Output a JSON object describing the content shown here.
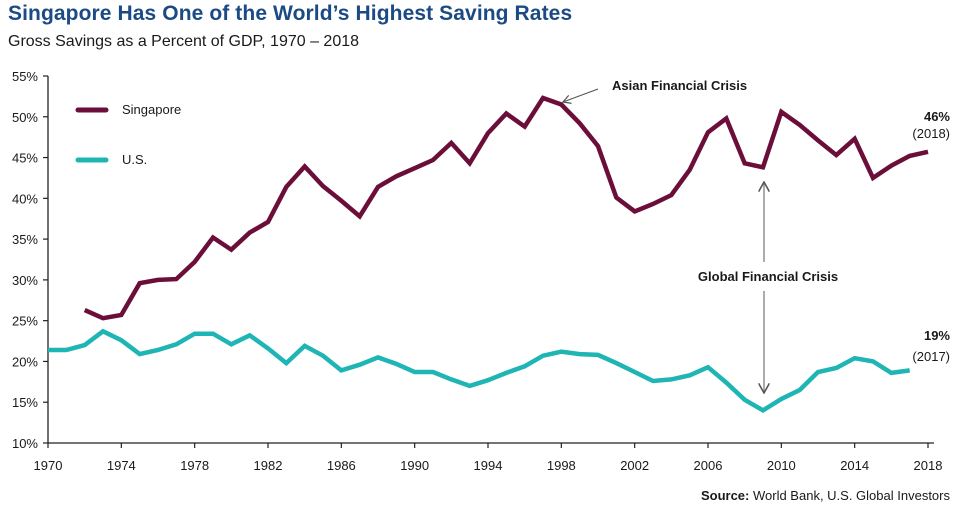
{
  "chart_data": {
    "type": "line",
    "title": "Singapore Has One of the World’s Highest Saving Rates",
    "subtitle": "Gross Savings as a Percent of GDP, 1970 – 2018",
    "xlabel": "",
    "ylabel": "",
    "xlim": [
      1970,
      2018
    ],
    "ylim": [
      10,
      55
    ],
    "x_ticks": [
      1970,
      1974,
      1978,
      1982,
      1986,
      1990,
      1994,
      1998,
      2002,
      2006,
      2010,
      2014,
      2018
    ],
    "x_tick_labels": [
      "1970",
      "1974",
      "1978",
      "1982",
      "1986",
      "1990",
      "1994",
      "1998",
      "2002",
      "2006",
      "2010",
      "2014",
      "2018"
    ],
    "y_ticks": [
      10,
      15,
      20,
      25,
      30,
      35,
      40,
      45,
      50,
      55
    ],
    "y_tick_labels": [
      "10%",
      "15%",
      "20%",
      "25%",
      "30%",
      "35%",
      "40%",
      "45%",
      "50%",
      "55%"
    ],
    "grid": false,
    "legend_position": "top-left",
    "series": [
      {
        "name": "Singapore",
        "color": "#6b0f3a",
        "x": [
          1972,
          1973,
          1974,
          1975,
          1976,
          1977,
          1978,
          1979,
          1980,
          1981,
          1982,
          1983,
          1984,
          1985,
          1986,
          1987,
          1988,
          1989,
          1990,
          1991,
          1992,
          1993,
          1994,
          1995,
          1996,
          1997,
          1998,
          1999,
          2000,
          2001,
          2002,
          2003,
          2004,
          2005,
          2006,
          2007,
          2008,
          2009,
          2010,
          2011,
          2012,
          2013,
          2014,
          2015,
          2016,
          2017,
          2018
        ],
        "values": [
          26.3,
          25.3,
          25.7,
          29.6,
          30.0,
          30.1,
          32.2,
          35.2,
          33.7,
          35.8,
          37.1,
          41.4,
          43.9,
          41.5,
          39.7,
          37.8,
          41.4,
          42.7,
          43.7,
          44.7,
          46.8,
          44.3,
          48.0,
          50.4,
          48.8,
          52.3,
          51.5,
          49.2,
          46.4,
          40.1,
          38.4,
          39.3,
          40.4,
          43.5,
          48.1,
          49.8,
          44.3,
          43.8,
          50.6,
          49.0,
          47.1,
          45.3,
          47.3,
          42.5,
          44.0,
          45.2,
          45.7
        ]
      },
      {
        "name": "U.S.",
        "color": "#1fb5b5",
        "x": [
          1970,
          1971,
          1972,
          1973,
          1974,
          1975,
          1976,
          1977,
          1978,
          1979,
          1980,
          1981,
          1982,
          1983,
          1984,
          1985,
          1986,
          1987,
          1988,
          1989,
          1990,
          1991,
          1992,
          1993,
          1994,
          1995,
          1996,
          1997,
          1998,
          1999,
          2000,
          2001,
          2002,
          2003,
          2004,
          2005,
          2006,
          2007,
          2008,
          2009,
          2010,
          2011,
          2012,
          2013,
          2014,
          2015,
          2016,
          2017
        ],
        "values": [
          21.4,
          21.4,
          22.0,
          23.7,
          22.6,
          20.9,
          21.4,
          22.1,
          23.4,
          23.4,
          22.1,
          23.2,
          21.6,
          19.8,
          21.9,
          20.7,
          18.9,
          19.6,
          20.5,
          19.7,
          18.7,
          18.7,
          17.8,
          17.0,
          17.7,
          18.6,
          19.4,
          20.7,
          21.2,
          20.9,
          20.8,
          19.8,
          18.7,
          17.6,
          17.8,
          18.3,
          19.3,
          17.4,
          15.3,
          14.0,
          15.4,
          16.5,
          18.7,
          19.2,
          20.4,
          20.0,
          18.6,
          18.9
        ]
      }
    ],
    "annotations": [
      {
        "name": "asian-financial-crisis",
        "text": "Asian Financial Crisis",
        "target_x": 1998,
        "target_series": "Singapore"
      },
      {
        "name": "global-financial-crisis",
        "text": "Global Financial Crisis",
        "target_x": 2009,
        "target_series": "both"
      }
    ],
    "end_labels": [
      {
        "series": "Singapore",
        "value_text": "46%",
        "year_text": "(2018)"
      },
      {
        "series": "U.S.",
        "value_text": "19%",
        "year_text": "(2017)"
      }
    ],
    "source_label": "Source:",
    "source_text": " World Bank, U.S. Global Investors"
  }
}
